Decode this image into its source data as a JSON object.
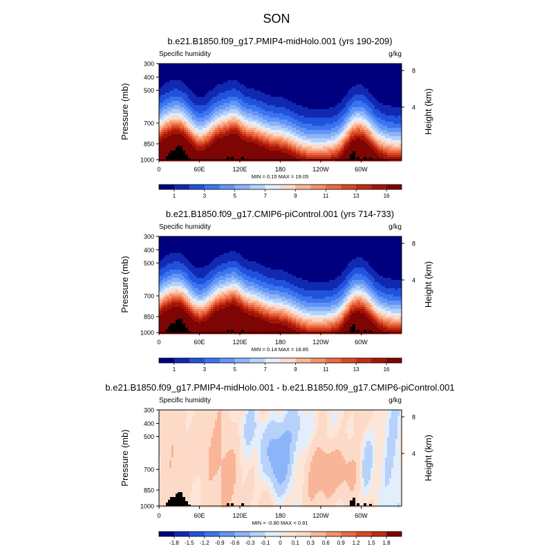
{
  "figure_title": "SON",
  "chart_data": [
    {
      "type": "contour",
      "title": "b.e21.B1850.f09_g17.PMIP4-midHolo.001 (yrs 190-209)",
      "left_label": "Specific humidity",
      "right_label": "g/kg",
      "ylabel": "Pressure (mb)",
      "ylabel_right": "Height (km)",
      "yticks": [
        "300",
        "400",
        "500",
        "700",
        "850",
        "1000"
      ],
      "yticks_right": [
        "8",
        "4"
      ],
      "xticks": [
        "0",
        "60E",
        "120E",
        "180",
        "120W",
        "60W"
      ],
      "minmax_label": "MIN =   0.15  MAX =   19.05",
      "colorbar_labels": [
        "1",
        "3",
        "5",
        "7",
        "9",
        "11",
        "13",
        "16"
      ],
      "colorbar_colors": [
        "#00007f",
        "#1029b0",
        "#2152db",
        "#3a74f0",
        "#6295f5",
        "#8cb4f8",
        "#b6d2fb",
        "#e2eefc",
        "#fddac8",
        "#f9b597",
        "#f39068",
        "#e96a43",
        "#da4826",
        "#c42b13",
        "#a31508",
        "#7d0503"
      ],
      "field": "absolute",
      "min": 0.15,
      "max": 19.05
    },
    {
      "type": "contour",
      "title": "b.e21.B1850.f09_g17.CMIP6-piControl.001 (yrs 714-733)",
      "left_label": "Specific humidity",
      "right_label": "g/kg",
      "ylabel": "Pressure (mb)",
      "ylabel_right": "Height (km)",
      "yticks": [
        "300",
        "400",
        "500",
        "700",
        "850",
        "1000"
      ],
      "yticks_right": [
        "8",
        "4"
      ],
      "xticks": [
        "0",
        "60E",
        "120E",
        "180",
        "120W",
        "60W"
      ],
      "minmax_label": "MIN =   0.14  MAX =   18.85",
      "colorbar_labels": [
        "1",
        "3",
        "5",
        "7",
        "9",
        "11",
        "13",
        "16"
      ],
      "colorbar_colors": [
        "#00007f",
        "#1029b0",
        "#2152db",
        "#3a74f0",
        "#6295f5",
        "#8cb4f8",
        "#b6d2fb",
        "#e2eefc",
        "#fddac8",
        "#f9b597",
        "#f39068",
        "#e96a43",
        "#da4826",
        "#c42b13",
        "#a31508",
        "#7d0503"
      ],
      "field": "absolute",
      "min": 0.14,
      "max": 18.85
    },
    {
      "type": "contour",
      "title": "b.e21.B1850.f09_g17.PMIP4-midHolo.001 - b.e21.B1850.f09_g17.CMIP6-piControl.001",
      "left_label": "Specific humidity",
      "right_label": "g/kg",
      "ylabel": "Pressure (mb)",
      "ylabel_right": "Height (km)",
      "yticks": [
        "300",
        "400",
        "500",
        "700",
        "850",
        "1000"
      ],
      "yticks_right": [
        "8",
        "4"
      ],
      "xticks": [
        "0",
        "60E",
        "120E",
        "180",
        "120W",
        "60W"
      ],
      "minmax_label": "MIN =  -0.80  MAX =   0.91",
      "colorbar_labels": [
        "-1.8",
        "-1.5",
        "-1.2",
        "-0.9",
        "-0.6",
        "-0.3",
        "-0.1",
        "0",
        "0.1",
        "0.3",
        "0.6",
        "0.9",
        "1.2",
        "1.5",
        "1.8"
      ],
      "colorbar_colors": [
        "#00007f",
        "#1029b0",
        "#2152db",
        "#3a74f0",
        "#6295f5",
        "#8cb4f8",
        "#b6d2fb",
        "#e2eefc",
        "#fde6d8",
        "#fddac8",
        "#f9b597",
        "#f39068",
        "#e96a43",
        "#da4826",
        "#c42b13",
        "#7d0503"
      ],
      "field": "difference",
      "min": -0.8,
      "max": 0.91
    }
  ]
}
